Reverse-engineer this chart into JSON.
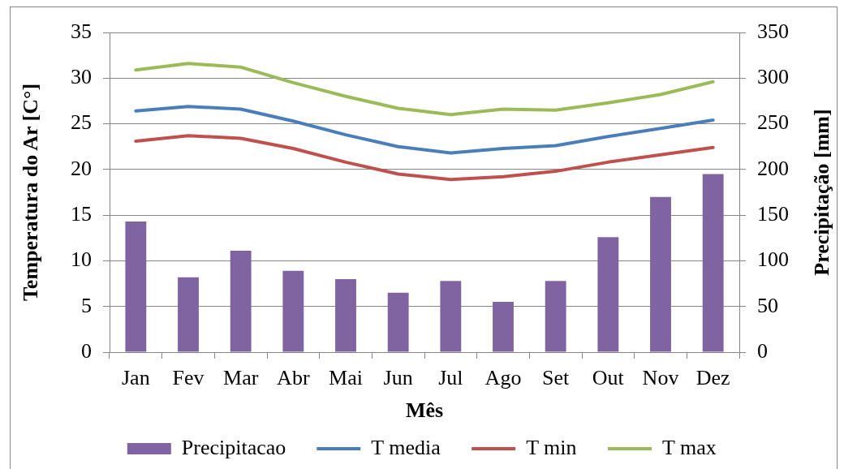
{
  "chart_data": {
    "type": "bar",
    "categories": [
      "Jan",
      "Fev",
      "Mar",
      "Abr",
      "Mai",
      "Jun",
      "Jul",
      "Ago",
      "Set",
      "Out",
      "Nov",
      "Dez"
    ],
    "xlabel": "Mês",
    "ylabel": "Temperatura do Ar [C°]",
    "y2label": "Precipitação [mm]",
    "series": [
      {
        "name": "Precipitacao",
        "axis": "y2",
        "color": "#8064a2",
        "values": [
          143,
          82,
          111,
          89,
          80,
          65,
          78,
          55,
          78,
          126,
          170,
          195
        ]
      },
      {
        "name": "T media",
        "type": "line",
        "color": "#4a7ebb",
        "values": [
          26.4,
          26.9,
          26.6,
          25.3,
          23.8,
          22.5,
          21.8,
          22.3,
          22.6,
          23.6,
          24.5,
          25.4
        ]
      },
      {
        "name": "T min",
        "type": "line",
        "color": "#c0504d",
        "values": [
          23.1,
          23.7,
          23.4,
          22.3,
          20.8,
          19.5,
          18.9,
          19.2,
          19.8,
          20.8,
          21.6,
          22.4
        ]
      },
      {
        "name": "T max",
        "type": "line",
        "color": "#9bbb59",
        "values": [
          30.9,
          31.6,
          31.2,
          29.5,
          28.0,
          26.7,
          26.0,
          26.6,
          26.5,
          27.3,
          28.2,
          29.6
        ]
      }
    ],
    "ylim": [
      0,
      35
    ],
    "yticks": [
      0,
      5,
      10,
      15,
      20,
      25,
      30,
      35
    ],
    "y2lim": [
      0,
      350
    ],
    "y2ticks": [
      0,
      50,
      100,
      150,
      200,
      250,
      300,
      350
    ],
    "grid": "y",
    "legend": "bottom",
    "line_style": "solid"
  }
}
